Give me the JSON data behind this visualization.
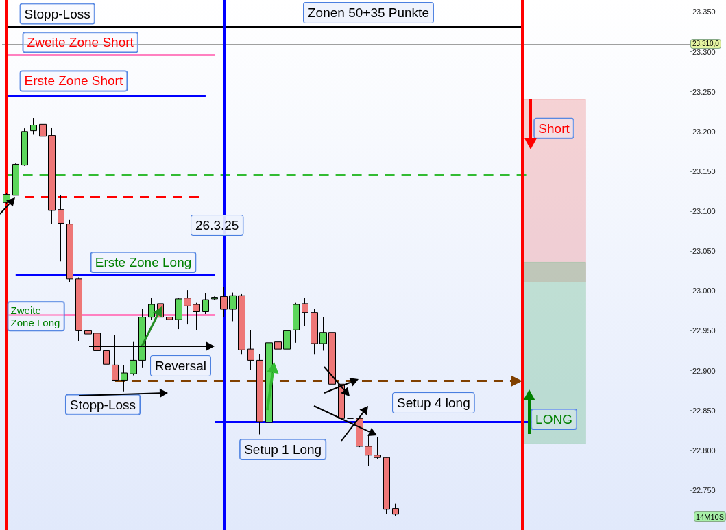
{
  "chart_data": {
    "type": "candlestick",
    "title": "Zonen 50+35 Punkte",
    "categories": [
      null,
      null,
      null,
      null,
      null,
      null,
      null,
      null,
      null,
      null,
      null,
      null,
      null,
      null,
      null,
      null,
      null,
      null,
      null,
      null,
      null,
      null,
      null,
      null,
      null,
      null,
      null,
      null,
      null,
      null,
      null,
      null,
      null,
      null,
      null,
      null,
      null,
      null,
      null,
      null,
      null,
      null,
      null,
      null,
      null,
      null,
      null,
      null,
      null,
      null,
      null,
      null,
      null,
      null,
      null,
      null,
      null,
      null,
      null,
      null,
      null,
      null,
      null,
      null,
      null,
      null,
      null,
      null,
      null,
      null,
      null,
      null,
      null,
      null,
      null,
      null
    ],
    "ohlc": [
      [
        23111,
        23123,
        23109,
        23121
      ],
      [
        23120,
        23160,
        23120,
        23159
      ],
      [
        23158,
        23204,
        23157,
        23200
      ],
      [
        23201,
        23217,
        23196,
        23208
      ],
      [
        23209,
        23224,
        23188,
        23194
      ],
      [
        23195,
        23205,
        23084,
        23101
      ],
      [
        23102,
        23120,
        23037,
        23085
      ],
      [
        23084,
        23089,
        23011,
        23015
      ],
      [
        23015,
        23017,
        22937,
        22950
      ],
      [
        22950,
        22979,
        22905,
        22946
      ],
      [
        22947,
        22960,
        22895,
        22925
      ],
      [
        22925,
        22952,
        22888,
        22908
      ],
      [
        22907,
        22945,
        22887,
        22888
      ],
      [
        22888,
        22907,
        22874,
        22897
      ],
      [
        22896,
        22936,
        22894,
        22913
      ],
      [
        22913,
        22977,
        22904,
        22967
      ],
      [
        22967,
        22991,
        22964,
        22983
      ],
      [
        22984,
        22991,
        22951,
        22967
      ],
      [
        22967,
        22986,
        22955,
        22964
      ],
      [
        22964,
        22991,
        22952,
        22990
      ],
      [
        22991,
        23001,
        22958,
        22981
      ],
      [
        22983,
        22985,
        22951,
        22974
      ],
      [
        22974,
        22997,
        22971,
        22989
      ],
      [
        22990,
        22993,
        22989,
        22992
      ],
      [
        22993,
        23005,
        22967,
        22977
      ],
      [
        22977,
        22998,
        22962,
        22994
      ],
      [
        22994,
        22996,
        22920,
        22926
      ],
      [
        22927,
        22951,
        22901,
        22913
      ],
      [
        22913,
        22921,
        22820,
        22836
      ],
      [
        22835,
        22943,
        22828,
        22935
      ],
      [
        22936,
        22949,
        22919,
        22927
      ],
      [
        22927,
        22972,
        22913,
        22950
      ],
      [
        22951,
        22985,
        22935,
        22983
      ],
      [
        22984,
        22991,
        22956,
        22973
      ],
      [
        22973,
        22977,
        22920,
        22934
      ],
      [
        22934,
        22967,
        22925,
        22948
      ],
      [
        22948,
        22954,
        22861,
        22883
      ],
      [
        22883,
        22885,
        22829,
        22840
      ],
      [
        22840,
        22844,
        22817,
        22840
      ],
      [
        22840,
        22841,
        22804,
        22805
      ],
      [
        22805,
        22820,
        22780,
        22794
      ],
      [
        22794,
        22817,
        22789,
        22791
      ],
      [
        22791,
        22792,
        22720,
        22726
      ],
      [
        22727,
        22733,
        22718,
        22720
      ],
      null,
      null,
      null,
      null,
      null,
      null,
      null,
      null,
      null,
      null,
      null,
      null,
      null,
      null,
      null,
      null,
      null,
      null,
      null,
      null,
      null,
      null,
      null,
      null,
      null,
      null,
      null,
      null,
      null,
      null,
      null,
      null
    ],
    "ylim": [
      22700,
      23365
    ],
    "yticks": [
      {
        "value": 22750,
        "label": "22.750"
      },
      {
        "value": 22800,
        "label": "22.800"
      },
      {
        "value": 22850,
        "label": "22.850"
      },
      {
        "value": 22900,
        "label": "22.900"
      },
      {
        "value": 22950,
        "label": "22.950"
      },
      {
        "value": 23000,
        "label": "23.000"
      },
      {
        "value": 23050,
        "label": "23.050"
      },
      {
        "value": 23100,
        "label": "23.100"
      },
      {
        "value": 23150,
        "label": "23.150"
      },
      {
        "value": 23200,
        "label": "23.200"
      },
      {
        "value": 23250,
        "label": "23.250"
      },
      {
        "value": 23300,
        "label": "23.300"
      },
      {
        "value": 23350,
        "label": "23.350"
      }
    ],
    "tick_labels": "y",
    "grid": false,
    "ref_lines": [
      {
        "axis": "y",
        "value": 23331,
        "label": "Stopp-Loss",
        "color": "#000000"
      },
      {
        "axis": "y",
        "value": 23296,
        "label": "Zweite Zone Short",
        "color": "#ff80c0"
      },
      {
        "axis": "y",
        "value": 23245,
        "label": "Erste Zone Short",
        "color": "#0000ff"
      },
      {
        "axis": "y",
        "value": 23145,
        "color": "#33bb33",
        "line_style": "dashed"
      },
      {
        "axis": "y",
        "value": 23118,
        "color": "#ff0000",
        "line_style": "dashed"
      },
      {
        "axis": "y",
        "value": 23020,
        "label": "Erste Zone Long",
        "color": "#0000ff"
      },
      {
        "axis": "y",
        "value": 22970,
        "label": "Zweite  Zone Long",
        "color": "#ff80c0"
      },
      {
        "axis": "y",
        "value": 22887,
        "label": "Stopp-Loss",
        "color": "#804000",
        "line_style": "dashed"
      },
      {
        "axis": "y",
        "value": 22836,
        "label": "Setup 1 Long",
        "color": "#0000ff"
      },
      {
        "axis": "y",
        "value": 23310,
        "label": "23.310,0",
        "color": "#a0a0a0"
      }
    ],
    "bands": [
      {
        "axis": "y",
        "from": 23011,
        "to": 23240,
        "label": "Short",
        "color": "#ee8888"
      },
      {
        "axis": "y",
        "from": 22808,
        "to": 23036,
        "label": "LONG",
        "color": "#66bb88"
      }
    ],
    "annotations": [
      "26.3.25",
      "Reversal",
      "Setup 4 long",
      "14M10S"
    ]
  }
}
